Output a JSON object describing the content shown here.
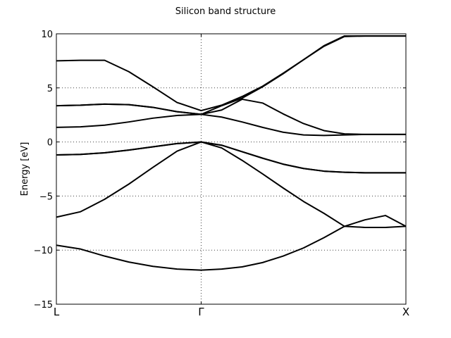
{
  "chart_data": {
    "type": "line",
    "title": "Silicon band structure",
    "ylabel": "Energy [eV]",
    "xlabel": "",
    "ylim": [
      -15,
      10
    ],
    "xlim": [
      0,
      1.7071
    ],
    "grid": true,
    "legend": "none",
    "line_color": "#000000",
    "yticks": [
      {
        "value": 10,
        "label": "10"
      },
      {
        "value": 5,
        "label": "5"
      },
      {
        "value": 0,
        "label": "0"
      },
      {
        "value": -5,
        "label": "−5"
      },
      {
        "value": -10,
        "label": "−10"
      },
      {
        "value": -15,
        "label": "−15"
      }
    ],
    "xticks": [
      {
        "value": 0,
        "label": "L"
      },
      {
        "value": 0.7071,
        "label": "Γ"
      },
      {
        "value": 1.7071,
        "label": "X"
      }
    ],
    "x": [
      0,
      0.1179,
      0.2357,
      0.3536,
      0.4714,
      0.5893,
      0.7071,
      0.8071,
      0.9071,
      1.0071,
      1.1071,
      1.2071,
      1.3071,
      1.4071,
      1.5071,
      1.6071,
      1.7071
    ],
    "series": [
      {
        "values": [
          -9.55,
          -9.9,
          -10.55,
          -11.1,
          -11.5,
          -11.75,
          -11.85,
          -11.75,
          -11.55,
          -11.15,
          -10.55,
          -9.8,
          -8.85,
          -7.8,
          -7.2,
          -6.8,
          -7.8
        ]
      },
      {
        "values": [
          -6.95,
          -6.45,
          -5.3,
          -3.9,
          -2.35,
          -0.85,
          0.0,
          -0.55,
          -1.7,
          -2.95,
          -4.25,
          -5.5,
          -6.6,
          -7.8,
          -7.9,
          -7.9,
          -7.8
        ]
      },
      {
        "values": [
          -1.2,
          -1.15,
          -1.0,
          -0.75,
          -0.45,
          -0.15,
          0.0,
          -0.3,
          -0.9,
          -1.5,
          -2.05,
          -2.45,
          -2.7,
          -2.8,
          -2.85,
          -2.85,
          -2.85
        ]
      },
      {
        "values": [
          -1.2,
          -1.15,
          -1.0,
          -0.75,
          -0.45,
          -0.15,
          0.0,
          -0.3,
          -0.9,
          -1.5,
          -2.05,
          -2.45,
          -2.7,
          -2.8,
          -2.85,
          -2.85,
          -2.85
        ]
      },
      {
        "values": [
          1.35,
          1.4,
          1.55,
          1.85,
          2.2,
          2.45,
          2.55,
          2.3,
          1.85,
          1.35,
          0.9,
          0.65,
          0.6,
          0.65,
          0.7,
          0.7,
          0.7
        ]
      },
      {
        "values": [
          3.35,
          3.4,
          3.5,
          3.45,
          3.2,
          2.8,
          2.55,
          2.95,
          3.95,
          3.6,
          2.6,
          1.7,
          1.05,
          0.75,
          0.7,
          0.7,
          0.7
        ]
      },
      {
        "values": [
          3.35,
          3.4,
          3.5,
          3.45,
          3.2,
          2.8,
          2.55,
          3.35,
          4.05,
          5.1,
          6.3,
          7.6,
          8.85,
          9.75,
          9.8,
          9.8,
          9.8
        ]
      },
      {
        "values": [
          7.5,
          7.55,
          7.55,
          6.5,
          5.1,
          3.65,
          2.9,
          3.4,
          4.2,
          5.15,
          6.35,
          7.6,
          8.9,
          9.8,
          9.8,
          9.8,
          9.8
        ]
      }
    ]
  }
}
